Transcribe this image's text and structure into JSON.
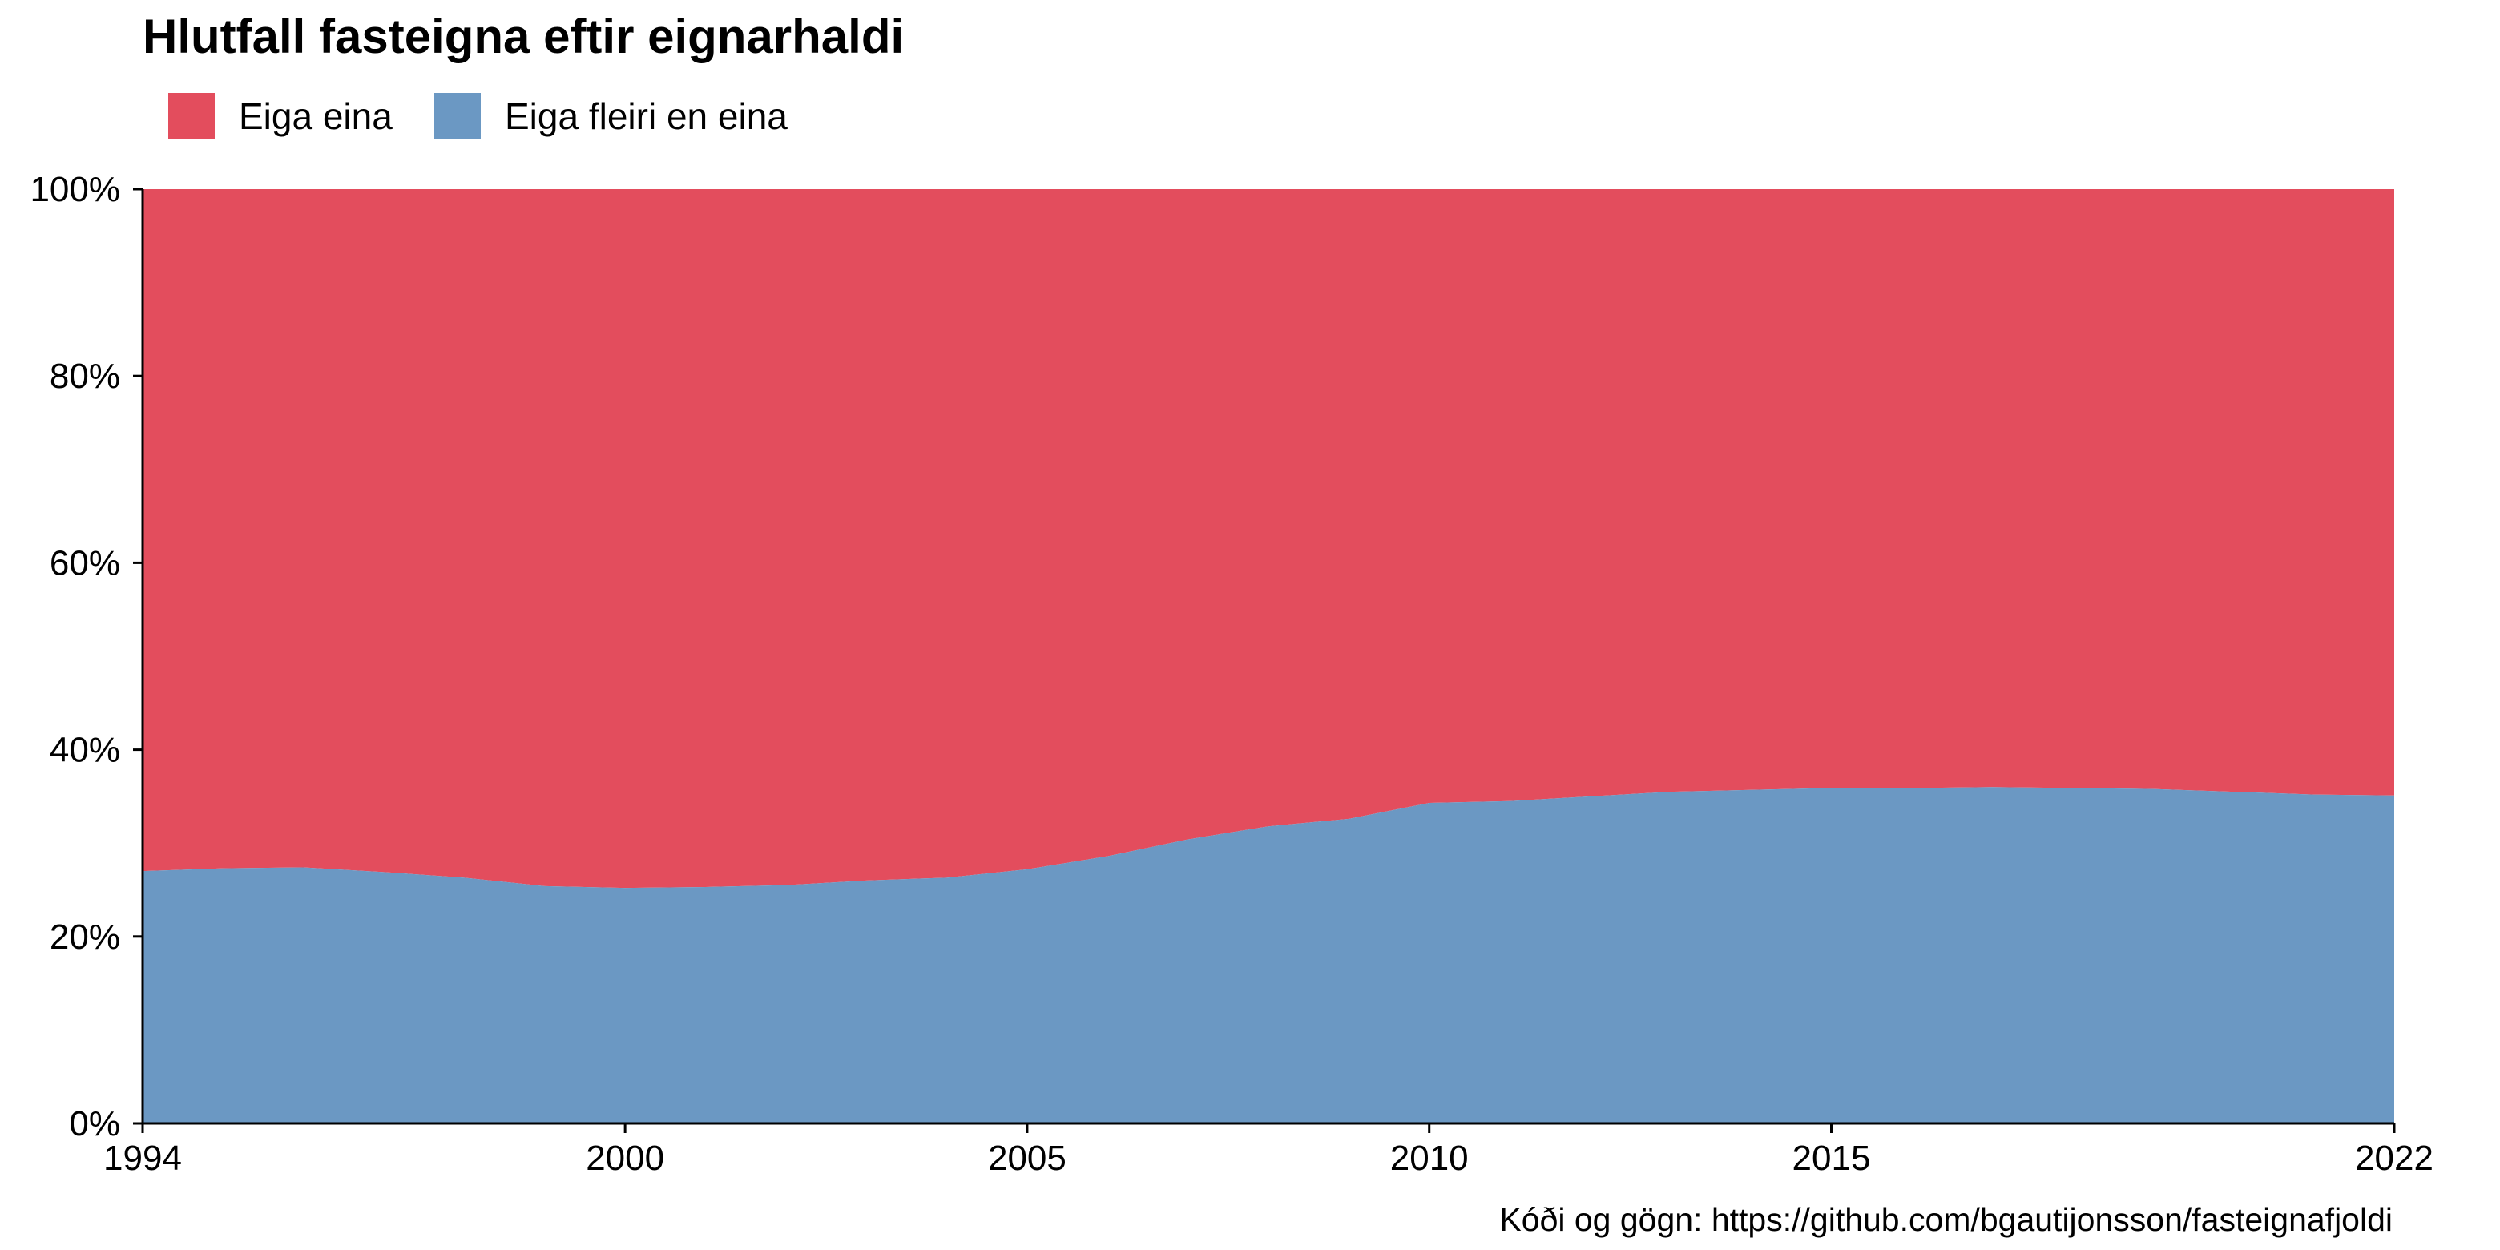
{
  "chart_data": {
    "type": "area",
    "stacking": "percent",
    "title": "Hlutfall fasteigna eftir eignarhaldi",
    "caption": "Kóði og gögn: https://github.com/bgautijonsson/fasteignafjoldi",
    "xlabel": "",
    "ylabel": "",
    "legend_position": "top-left",
    "grid": false,
    "xlim": [
      1994,
      2022
    ],
    "ylim": [
      0,
      100
    ],
    "x_ticks": [
      "1994",
      "2000",
      "2005",
      "2010",
      "2015",
      "2022"
    ],
    "y_ticks": [
      "0%",
      "20%",
      "40%",
      "60%",
      "80%",
      "100%"
    ],
    "x": [
      1994,
      1995,
      1996,
      1997,
      1998,
      1999,
      2000,
      2001,
      2002,
      2003,
      2004,
      2005,
      2006,
      2007,
      2008,
      2009,
      2010,
      2011,
      2012,
      2013,
      2014,
      2015,
      2016,
      2017,
      2018,
      2019,
      2020,
      2021,
      2022
    ],
    "series": [
      {
        "name": "Eiga eina",
        "color": "#E34D5D",
        "values": [
          73.0,
          72.7,
          72.6,
          73.1,
          73.7,
          74.6,
          74.8,
          74.7,
          74.5,
          74.0,
          73.7,
          72.8,
          71.4,
          69.6,
          68.2,
          67.4,
          65.7,
          65.5,
          65.0,
          64.5,
          64.3,
          64.1,
          64.1,
          64.0,
          64.1,
          64.2,
          64.5,
          64.8,
          64.9
        ]
      },
      {
        "name": "Eiga fleiri en eina",
        "color": "#6B98C3",
        "values": [
          27.0,
          27.3,
          27.4,
          26.9,
          26.3,
          25.4,
          25.2,
          25.3,
          25.5,
          26.0,
          26.3,
          27.2,
          28.6,
          30.4,
          31.8,
          32.6,
          34.3,
          34.5,
          35.0,
          35.5,
          35.7,
          35.9,
          35.9,
          36.0,
          35.9,
          35.8,
          35.5,
          35.2,
          35.1
        ]
      }
    ]
  }
}
